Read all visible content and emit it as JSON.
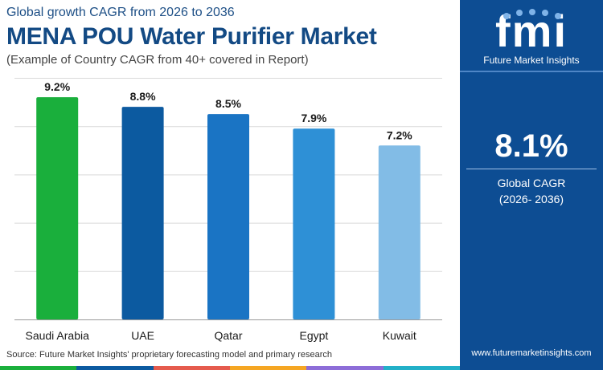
{
  "header": {
    "subtitle": "Global growth CAGR from 2026 to 2036",
    "title": "MENA POU Water Purifier Market",
    "note": "(Example of Country CAGR from 40+ covered in Report)"
  },
  "chart_data": {
    "type": "bar",
    "title": "MENA POU Water Purifier Market",
    "categories": [
      "Saudi Arabia",
      "UAE",
      "Qatar",
      "Egypt",
      "Kuwait"
    ],
    "values": [
      9.2,
      8.8,
      8.5,
      7.9,
      7.2
    ],
    "data_labels": [
      "9.2%",
      "8.8%",
      "8.5%",
      "7.9%",
      "7.2%"
    ],
    "ylim": [
      0,
      10
    ],
    "grid": true,
    "legend": "none",
    "colors": [
      "#1aaf3c",
      "#0c5aa0",
      "#1a74c4",
      "#2e90d6",
      "#82bce6"
    ]
  },
  "footer": {
    "source": "Source: Future Market Insights' proprietary forecasting model and primary research",
    "strip_colors": [
      "#1aaf3c",
      "#0c5aa0",
      "#e55b4d",
      "#f5a623",
      "#8d6dd8",
      "#22b0c8"
    ]
  },
  "panel": {
    "logo_mark": "fmi",
    "logo_text": "Future Market Insights",
    "cagr_value": "8.1%",
    "cagr_label": "Global CAGR",
    "cagr_period": "(2026- 2036)",
    "website": "www.futuremarketinsights.com"
  }
}
